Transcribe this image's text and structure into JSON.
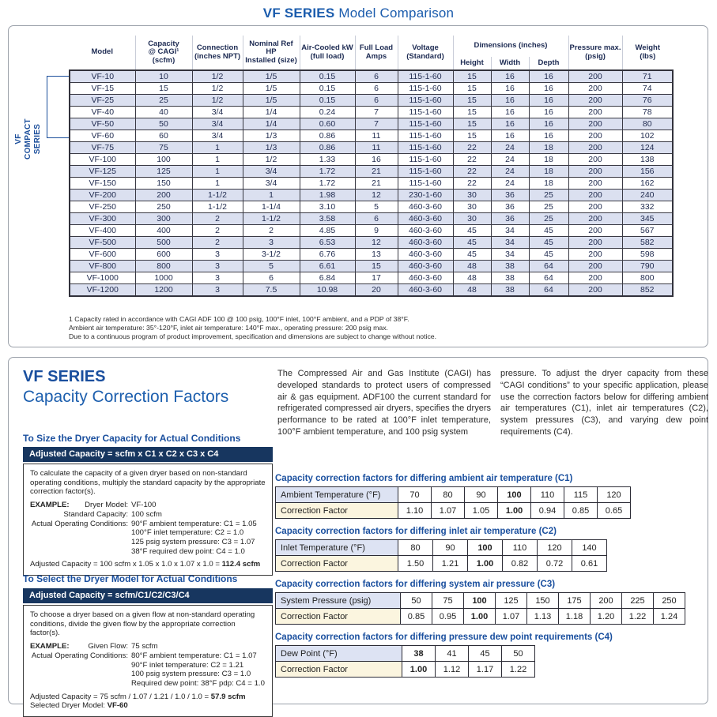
{
  "page_title": {
    "bold": "VF SERIES",
    "rest": "Model Comparison"
  },
  "compact_label": "VF COMPACT\nSERIES",
  "colors": {
    "accent_blue": "#1b5cad",
    "heading_blue": "#1a4f9e",
    "navy_bar": "#17365f",
    "row_shade": "#dbe0f0",
    "label_lavender": "#dde3f3",
    "label_cream": "#fbf5df"
  },
  "comparison_table": {
    "headers": [
      "Model",
      "Capacity\n@ CAGI¹ (scfm)",
      "Connection\n(inches NPT)",
      "Nominal Ref HP\nInstalled (size)",
      "Air-Cooled kW\n(full load)",
      "Full Load\nAmps",
      "Voltage\n(Standard)"
    ],
    "dimensions_group": "Dimensions (inches)",
    "dimension_cols": [
      "Height",
      "Width",
      "Depth"
    ],
    "tail_headers": [
      "Pressure max.\n(psig)",
      "Weight\n(lbs)"
    ],
    "rows": [
      [
        "VF-10",
        "10",
        "1/2",
        "1/5",
        "0.15",
        "6",
        "115-1-60",
        "15",
        "16",
        "16",
        "200",
        "71"
      ],
      [
        "VF-15",
        "15",
        "1/2",
        "1/5",
        "0.15",
        "6",
        "115-1-60",
        "15",
        "16",
        "16",
        "200",
        "74"
      ],
      [
        "VF-25",
        "25",
        "1/2",
        "1/5",
        "0.15",
        "6",
        "115-1-60",
        "15",
        "16",
        "16",
        "200",
        "76"
      ],
      [
        "VF-40",
        "40",
        "3/4",
        "1/4",
        "0.24",
        "7",
        "115-1-60",
        "15",
        "16",
        "16",
        "200",
        "78"
      ],
      [
        "VF-50",
        "50",
        "3/4",
        "1/4",
        "0.60",
        "7",
        "115-1-60",
        "15",
        "16",
        "16",
        "200",
        "80"
      ],
      [
        "VF-60",
        "60",
        "3/4",
        "1/3",
        "0.86",
        "11",
        "115-1-60",
        "15",
        "16",
        "16",
        "200",
        "102"
      ],
      [
        "VF-75",
        "75",
        "1",
        "1/3",
        "0.86",
        "11",
        "115-1-60",
        "22",
        "24",
        "18",
        "200",
        "124"
      ],
      [
        "VF-100",
        "100",
        "1",
        "1/2",
        "1.33",
        "16",
        "115-1-60",
        "22",
        "24",
        "18",
        "200",
        "138"
      ],
      [
        "VF-125",
        "125",
        "1",
        "3/4",
        "1.72",
        "21",
        "115-1-60",
        "22",
        "24",
        "18",
        "200",
        "156"
      ],
      [
        "VF-150",
        "150",
        "1",
        "3/4",
        "1.72",
        "21",
        "115-1-60",
        "22",
        "24",
        "18",
        "200",
        "162"
      ],
      [
        "VF-200",
        "200",
        "1-1/2",
        "1",
        "1.98",
        "12",
        "230-1-60",
        "30",
        "36",
        "25",
        "200",
        "240"
      ],
      [
        "VF-250",
        "250",
        "1-1/2",
        "1-1/4",
        "3.10",
        "5",
        "460-3-60",
        "30",
        "36",
        "25",
        "200",
        "332"
      ],
      [
        "VF-300",
        "300",
        "2",
        "1-1/2",
        "3.58",
        "6",
        "460-3-60",
        "30",
        "36",
        "25",
        "200",
        "345"
      ],
      [
        "VF-400",
        "400",
        "2",
        "2",
        "4.85",
        "9",
        "460-3-60",
        "45",
        "34",
        "45",
        "200",
        "567"
      ],
      [
        "VF-500",
        "500",
        "2",
        "3",
        "6.53",
        "12",
        "460-3-60",
        "45",
        "34",
        "45",
        "200",
        "582"
      ],
      [
        "VF-600",
        "600",
        "3",
        "3-1/2",
        "6.76",
        "13",
        "460-3-60",
        "45",
        "34",
        "45",
        "200",
        "598"
      ],
      [
        "VF-800",
        "800",
        "3",
        "5",
        "6.61",
        "15",
        "460-3-60",
        "48",
        "38",
        "64",
        "200",
        "790"
      ],
      [
        "VF-1000",
        "1000",
        "3",
        "6",
        "6.84",
        "17",
        "460-3-60",
        "48",
        "38",
        "64",
        "200",
        "800"
      ],
      [
        "VF-1200",
        "1200",
        "3",
        "7.5",
        "10.98",
        "20",
        "460-3-60",
        "48",
        "38",
        "64",
        "200",
        "852"
      ]
    ]
  },
  "footnotes": [
    "1 Capacity rated in accordance with CAGI ADF 100 @ 100 psig, 100°F inlet, 100°F ambient, and a PDP of 38°F.",
    "Ambient air temperature: 35°-120°F, inlet air temperature: 140°F max., operating pressure: 200 psig max.",
    "Due to a continuous program of product improvement, specification and dimensions are subject to change without notice."
  ],
  "correction": {
    "title_bold": "VF SERIES",
    "title_sub": "Capacity Correction Factors",
    "intro_col1": "The Compressed Air and Gas Institute (CAGI) has developed standards to protect users of compressed air & gas equipment. ADF100 the current standard for refrigerated compressed air dryers, specifies the dryers performance to be rated at 100°F inlet temperature, 100°F ambient temperature, and 100 psig system",
    "intro_col2": "pressure. To adjust the dryer capacity from these “CAGI conditions” to your specific application, please use the correction factors below for differing ambient air temperatures (C1), inlet air temperatures (C2), system pressures (C3), and varying dew point requirements (C4).",
    "size_section": {
      "heading": "To Size the Dryer Capacity for Actual Conditions",
      "formula": "Adjusted Capacity = scfm x C1 x C2 x C3 x C4",
      "body": "To calculate the capacity of a given dryer based on non-standard operating conditions, multiply the standard capacity by the appropriate correction factor(s).",
      "lines": [
        {
          "ex": "EXAMPLE:",
          "label": "Dryer Model:",
          "value": "VF-100"
        },
        {
          "label": "Standard Capacity:",
          "value": "100 scfm"
        },
        {
          "label": "Actual Operating Conditions:",
          "value": "90°F ambient temperature: C1 = 1.05"
        },
        {
          "value": "100°F inlet temperature: C2 = 1.0"
        },
        {
          "value": "125 psig system pressure: C3 = 1.07"
        },
        {
          "value": "38°F required dew point: C4 = 1.0"
        }
      ],
      "result_prefix": "Adjusted Capacity = 100 scfm x 1.05 x 1.0 x 1.07 x 1.0 = ",
      "result_bold": "112.4 scfm"
    },
    "select_section": {
      "heading": "To Select the Dryer Model for Actual Conditions",
      "formula": "Adjusted Capacity = scfm/C1/C2/C3/C4",
      "body": "To choose a dryer based on a given flow at non-standard operating conditions, divide the given flow by the appropriate correction factor(s).",
      "lines": [
        {
          "ex": "EXAMPLE:",
          "label": "Given Flow:",
          "value": "75 scfm"
        },
        {
          "label": "Actual Operating Conditions:",
          "value": "80°F ambient temperature: C1 = 1.07"
        },
        {
          "value": "90°F inlet temperature: C2 = 1.21"
        },
        {
          "value": "100 psig system pressure: C3 = 1.0"
        },
        {
          "value": "Required dew point: 38°F pdp: C4 = 1.0"
        }
      ],
      "result_prefix": "Adjusted Capacity = 75 scfm / 1.07 / 1.21 / 1.0 / 1.0 = ",
      "result_bold": "57.9 scfm",
      "selected_prefix": "Selected Dryer Model: ",
      "selected_bold": "VF-60"
    },
    "tables": [
      {
        "title": "Capacity correction factors for differing ambient air temperature (C1)",
        "row1_label": "Ambient Temperature (°F)",
        "row2_label": "Correction Factor",
        "values": [
          "70",
          "80",
          "90",
          "100",
          "110",
          "115",
          "120"
        ],
        "factors": [
          "1.10",
          "1.07",
          "1.05",
          "1.00",
          "0.94",
          "0.85",
          "0.65"
        ],
        "bold_index": 3
      },
      {
        "title": "Capacity correction factors for differing inlet air temperature (C2)",
        "row1_label": "Inlet Temperature (°F)",
        "row2_label": "Correction Factor",
        "values": [
          "80",
          "90",
          "100",
          "110",
          "120",
          "140"
        ],
        "factors": [
          "1.50",
          "1.21",
          "1.00",
          "0.82",
          "0.72",
          "0.61"
        ],
        "bold_index": 2
      },
      {
        "title": "Capacity correction factors for differing system air pressure (C3)",
        "row1_label": "System Pressure (psig)",
        "row2_label": "Correction Factor",
        "values": [
          "50",
          "75",
          "100",
          "125",
          "150",
          "175",
          "200",
          "225",
          "250"
        ],
        "factors": [
          "0.85",
          "0.95",
          "1.00",
          "1.07",
          "1.13",
          "1.18",
          "1.20",
          "1.22",
          "1.24"
        ],
        "bold_index": 2
      },
      {
        "title": "Capacity correction factors for differing pressure dew point requirements (C4)",
        "row1_label": "Dew Point (°F)",
        "row2_label": "Correction Factor",
        "values": [
          "38",
          "41",
          "45",
          "50"
        ],
        "factors": [
          "1.00",
          "1.12",
          "1.17",
          "1.22"
        ],
        "bold_index": 0
      }
    ]
  }
}
